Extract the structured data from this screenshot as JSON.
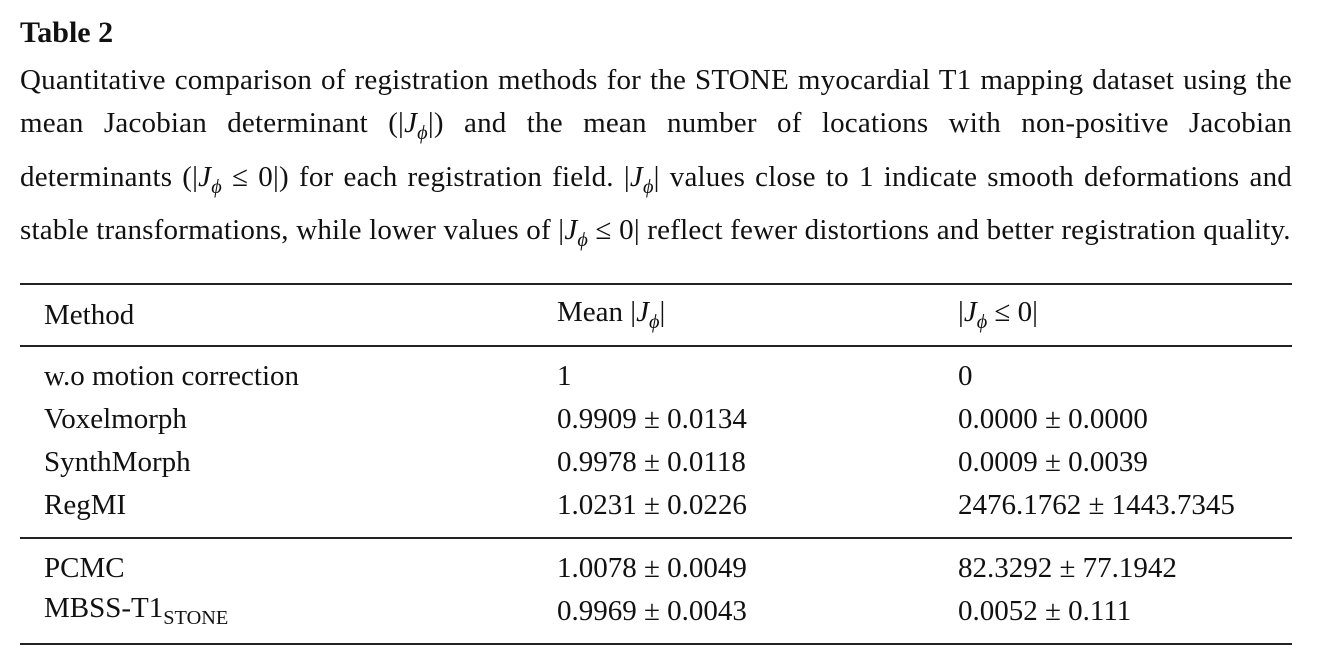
{
  "header": {
    "title": "Table 2",
    "caption": [
      "Quantitative comparison of registration methods for the STONE myocardial T1 mapping dataset using the mean Jacobian determinant (|",
      {
        "text": "J",
        "sub": "ϕ",
        "italic": true
      },
      "|) and the mean number of locations with non-positive Jacobian determinants (|",
      {
        "text": "J",
        "sub": "ϕ",
        "italic": true
      },
      " ≤ 0|) for each registration field. |",
      {
        "text": "J",
        "sub": "ϕ",
        "italic": true
      },
      "| values close to 1 indicate smooth deformations and stable transformations, while lower values of |",
      {
        "text": "J",
        "sub": "ϕ",
        "italic": true
      },
      " ≤ 0| reflect fewer distortions and better registration quality."
    ]
  },
  "table": {
    "columns": [
      "Method",
      [
        "Mean |",
        {
          "text": "J",
          "sub": "ϕ",
          "italic": true
        },
        "|"
      ],
      [
        "|",
        {
          "text": "J",
          "sub": "ϕ",
          "italic": true
        },
        " ≤ 0|"
      ]
    ],
    "groups": [
      [
        [
          "w.o motion correction",
          "1",
          "0"
        ],
        [
          "Voxelmorph",
          "0.9909 ± 0.0134",
          "0.0000 ± 0.0000"
        ],
        [
          "SynthMorph",
          "0.9978 ± 0.0118",
          "0.0009 ± 0.0039"
        ],
        [
          "RegMI",
          "1.0231 ± 0.0226",
          "2476.1762 ± 1443.7345"
        ]
      ],
      [
        [
          "PCMC",
          "1.0078 ± 0.0049",
          "82.3292 ± 77.1942"
        ],
        [
          {
            "text": "MBSS-T1",
            "sub": "STONE",
            "italic": false
          },
          "0.9969 ± 0.0043",
          "0.0052 ± 0.111"
        ]
      ]
    ]
  }
}
